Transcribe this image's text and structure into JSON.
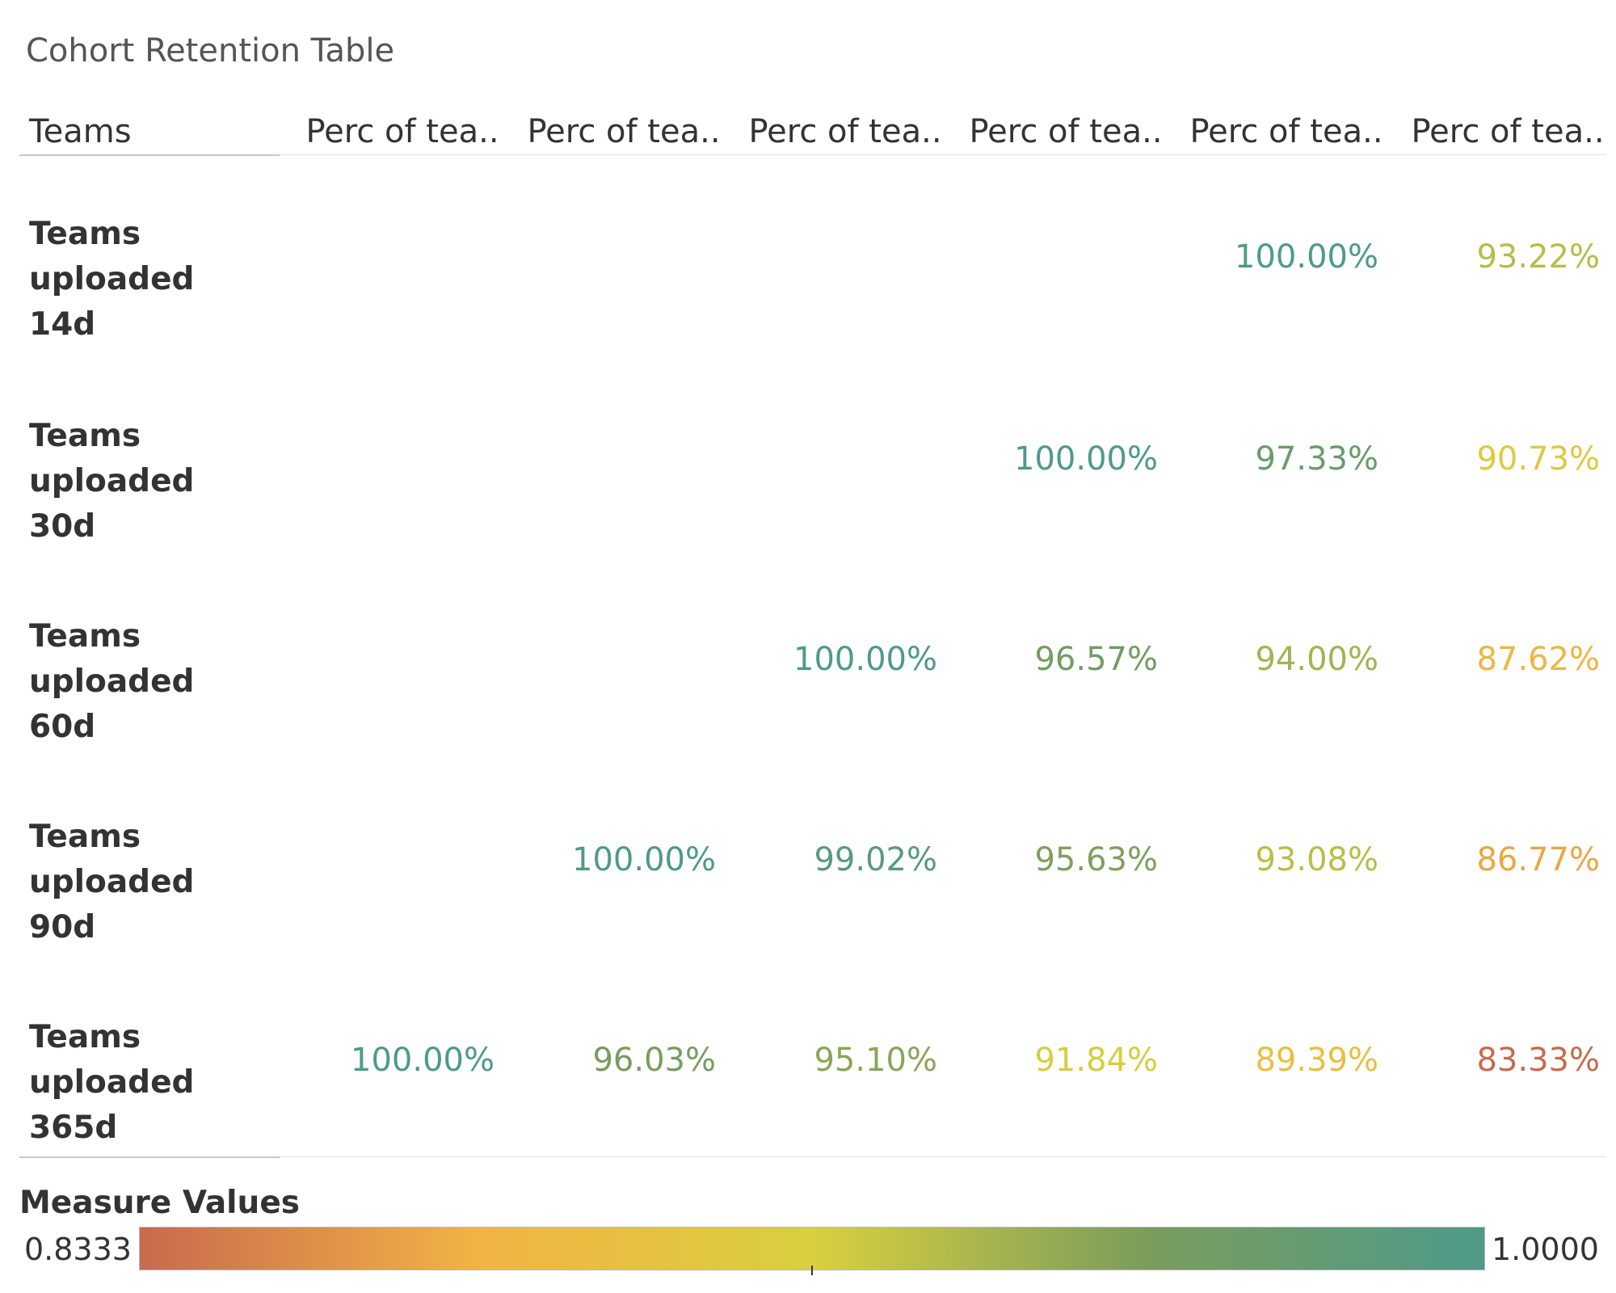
{
  "title": "Cohort Retention Table",
  "row_header_title": "Teams",
  "column_headers": [
    "Perc of tea..",
    "Perc of tea..",
    "Perc of tea..",
    "Perc of tea..",
    "Perc of tea..",
    "Perc of tea.."
  ],
  "rows": [
    {
      "label_line1": "Teams uploaded",
      "label_line2": "14d"
    },
    {
      "label_line1": "Teams uploaded",
      "label_line2": "30d"
    },
    {
      "label_line1": "Teams uploaded",
      "label_line2": "60d"
    },
    {
      "label_line1": "Teams uploaded",
      "label_line2": "90d"
    },
    {
      "label_line1": "Teams uploaded",
      "label_line2": "365d"
    }
  ],
  "legend": {
    "title": "Measure Values",
    "min_label": "0.8333",
    "max_label": "1.0000",
    "colors": [
      "#c86a4e",
      "#f2b344",
      "#d9d03e",
      "#7a9c5c",
      "#4e9a8a"
    ]
  },
  "chart_data": {
    "type": "heatmap",
    "title": "Cohort Retention Table",
    "row_header": "Teams",
    "columns": [
      "Perc of tea..",
      "Perc of tea..",
      "Perc of tea..",
      "Perc of tea..",
      "Perc of tea..",
      "Perc of tea.."
    ],
    "rows": [
      "Teams uploaded 14d",
      "Teams uploaded 30d",
      "Teams uploaded 60d",
      "Teams uploaded 90d",
      "Teams uploaded 365d"
    ],
    "values": [
      [
        null,
        null,
        null,
        null,
        1.0,
        0.9322
      ],
      [
        null,
        null,
        null,
        1.0,
        0.9733,
        0.9073
      ],
      [
        null,
        null,
        1.0,
        0.9657,
        0.94,
        0.8762
      ],
      [
        null,
        1.0,
        0.9902,
        0.9563,
        0.9308,
        0.8677
      ],
      [
        1.0,
        0.9603,
        0.951,
        0.9184,
        0.8939,
        0.8333
      ]
    ],
    "value_labels": [
      [
        null,
        null,
        null,
        null,
        "100.00%",
        "93.22%"
      ],
      [
        null,
        null,
        null,
        "100.00%",
        "97.33%",
        "90.73%"
      ],
      [
        null,
        null,
        "100.00%",
        "96.57%",
        "94.00%",
        "87.62%"
      ],
      [
        null,
        "100.00%",
        "99.02%",
        "95.63%",
        "93.08%",
        "86.77%"
      ],
      [
        "100.00%",
        "96.03%",
        "95.10%",
        "91.84%",
        "89.39%",
        "83.33%"
      ]
    ],
    "color_range": [
      0.8333,
      1.0
    ],
    "legend_title": "Measure Values",
    "legend_placement": "bottom"
  }
}
